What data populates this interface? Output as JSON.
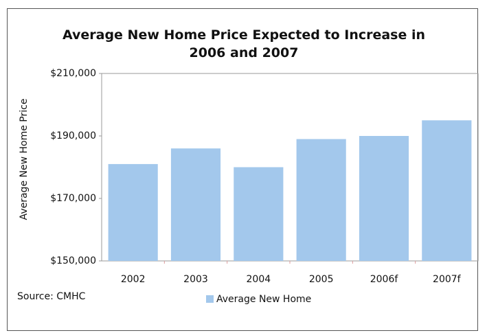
{
  "chart_data": {
    "type": "bar",
    "title": "Average New Home Price Expected to Increase in 2006 and 2007",
    "ylabel": "Average New Home Price",
    "source": "Source: CMHC",
    "categories": [
      "2002",
      "2003",
      "2004",
      "2005",
      "2006f",
      "2007f"
    ],
    "series": [
      {
        "name": "Average New Home",
        "color": "#a3c8ec",
        "values": [
          181000,
          186000,
          180000,
          189000,
          190000,
          195000
        ]
      }
    ],
    "ylim": [
      150000,
      210000
    ],
    "yticks": [
      {
        "value": 150000,
        "label": "$150,000"
      },
      {
        "value": 170000,
        "label": "$170,000"
      },
      {
        "value": 190000,
        "label": "$190,000"
      },
      {
        "value": 210000,
        "label": "$210,000"
      }
    ],
    "legend": "bottom"
  }
}
